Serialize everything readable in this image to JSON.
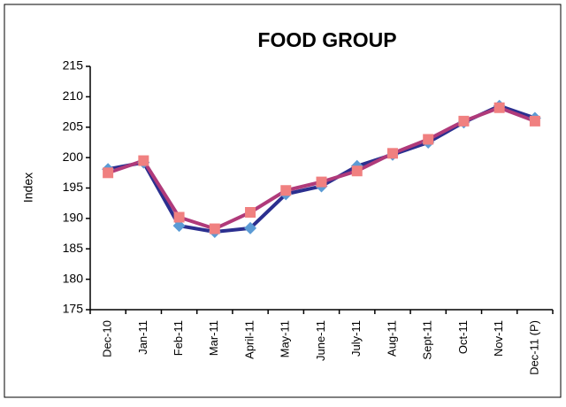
{
  "chart_data": {
    "type": "line",
    "title": "FOOD GROUP",
    "y_label": "Index",
    "categories": [
      "Dec-10",
      "Jan-11",
      "Feb-11",
      "Mar-11",
      "April-11",
      "May-11",
      "June-11",
      "July-11",
      "Aug-11",
      "Sept-11",
      "Oct-11",
      "Nov-11",
      "Dec-11 (P)"
    ],
    "series": [
      {
        "color": "#2b2f8f",
        "marker_color": "#5b9bd5",
        "marker": "diamond",
        "values": [
          198.1,
          199.2,
          188.8,
          187.8,
          188.4,
          194.0,
          195.3,
          198.6,
          200.5,
          202.5,
          205.8,
          208.5,
          206.5
        ]
      },
      {
        "color": "#b03a7a",
        "marker_color": "#f08080",
        "marker": "square",
        "values": [
          197.5,
          199.5,
          190.2,
          188.3,
          191.0,
          194.6,
          196.0,
          197.8,
          200.7,
          203.0,
          206.0,
          208.2,
          206.0
        ]
      }
    ],
    "ylim": [
      175,
      215
    ],
    "yticks": [
      175,
      180,
      185,
      190,
      195,
      200,
      205,
      210,
      215
    ],
    "grid": false
  }
}
